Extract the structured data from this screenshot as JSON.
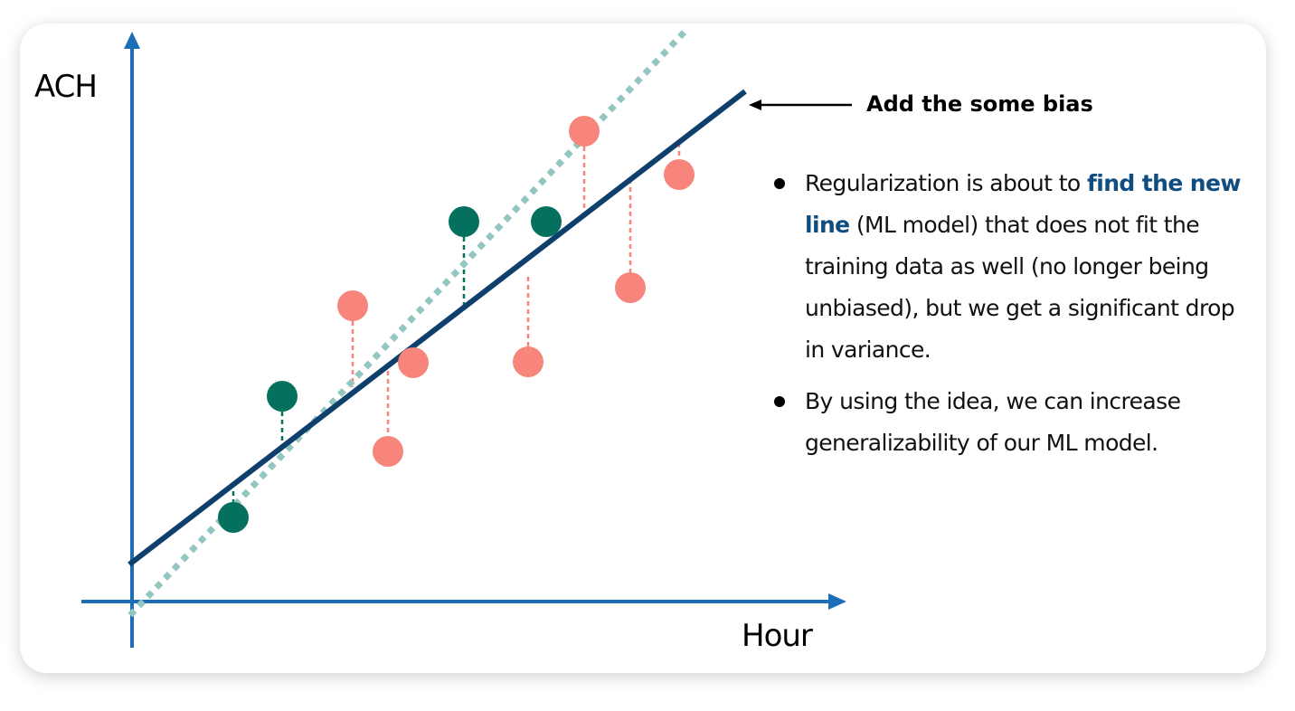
{
  "axes": {
    "y_label": "ACH",
    "x_label": "Hour"
  },
  "annotation": {
    "text": "Add the some bias"
  },
  "bullets": [
    {
      "before": "Regularization is about to ",
      "highlight": "find the new line",
      "after": " (ML model) that does not fit the training data as well (no longer being unbiased), but we get a significant drop in variance."
    },
    {
      "text": "By using the idea, we can increase generalizability of our ML model."
    }
  ],
  "colors": {
    "axis": "#1c6fb6",
    "new_line": "#0f3f6c",
    "overfit_line": "#93c6c0",
    "training_point": "#06705e",
    "testing_point": "#f8857c",
    "highlight": "#0f4d81"
  }
}
